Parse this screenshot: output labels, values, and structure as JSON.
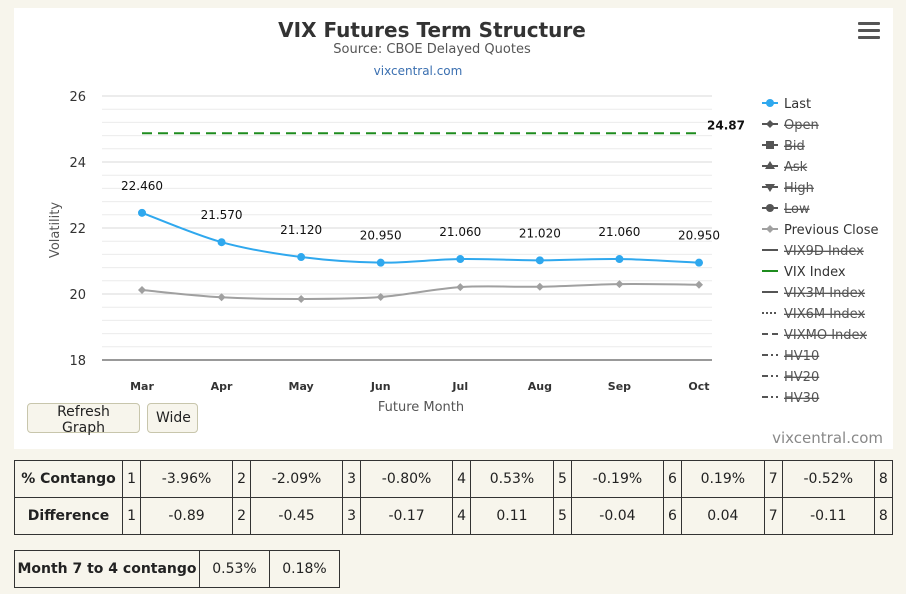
{
  "chart_data": {
    "type": "line",
    "title": "VIX Futures Term Structure",
    "subtitle": "Source: CBOE Delayed Quotes",
    "link": "vixcentral.com",
    "xlabel": "Future Month",
    "ylabel": "Volatility",
    "categories": [
      "Mar",
      "Apr",
      "May",
      "Jun",
      "Jul",
      "Aug",
      "Sep",
      "Oct"
    ],
    "ylim": [
      18,
      26
    ],
    "yticks": [
      18,
      20,
      22,
      24,
      26
    ],
    "grid": true,
    "legend_position": "right",
    "series": [
      {
        "name": "Last",
        "color": "#2fa8ee",
        "values": [
          22.46,
          21.57,
          21.12,
          20.95,
          21.06,
          21.02,
          21.06,
          20.95
        ],
        "labels": [
          "22.460",
          "21.570",
          "21.120",
          "20.950",
          "21.060",
          "21.020",
          "21.060",
          "20.950"
        ]
      },
      {
        "name": "Previous Close",
        "color": "#a0a0a0",
        "values": [
          20.12,
          19.9,
          19.85,
          19.91,
          20.21,
          20.22,
          20.3,
          20.28
        ]
      },
      {
        "name": "VIX Index",
        "color": "#1e8c1e",
        "values": [
          24.87,
          24.87,
          24.87,
          24.87,
          24.87,
          24.87,
          24.87,
          24.87
        ],
        "end_label": "24.87"
      }
    ],
    "legend": [
      {
        "name": "Last",
        "marker": "circle",
        "color": "#2fa8ee",
        "hidden": false
      },
      {
        "name": "Open",
        "marker": "diamond",
        "color": "#555555",
        "hidden": true
      },
      {
        "name": "Bid",
        "marker": "square",
        "color": "#555555",
        "hidden": true
      },
      {
        "name": "Ask",
        "marker": "triangle",
        "color": "#555555",
        "hidden": true
      },
      {
        "name": "High",
        "marker": "triangle-down",
        "color": "#555555",
        "hidden": true
      },
      {
        "name": "Low",
        "marker": "circle",
        "color": "#555555",
        "hidden": true
      },
      {
        "name": "Previous Close",
        "marker": "diamond",
        "color": "#a0a0a0",
        "hidden": false
      },
      {
        "name": "VIX9D Index",
        "marker": "line",
        "color": "#555555",
        "hidden": true
      },
      {
        "name": "VIX Index",
        "marker": "line",
        "color": "#1e8c1e",
        "hidden": false
      },
      {
        "name": "VIX3M Index",
        "marker": "line",
        "color": "#555555",
        "hidden": true
      },
      {
        "name": "VIX6M Index",
        "marker": "dotted",
        "color": "#555555",
        "hidden": true
      },
      {
        "name": "VIXMO Index",
        "marker": "dashed",
        "color": "#555555",
        "hidden": true
      },
      {
        "name": "HV10",
        "marker": "dashdot",
        "color": "#555555",
        "hidden": true
      },
      {
        "name": "HV20",
        "marker": "dashdot",
        "color": "#555555",
        "hidden": true
      },
      {
        "name": "HV30",
        "marker": "dashdot",
        "color": "#555555",
        "hidden": true
      }
    ]
  },
  "buttons": {
    "refresh": "Refresh Graph",
    "wide": "Wide"
  },
  "credit": "vixcentral.com",
  "menu_icon": "hamburger-menu-icon",
  "contango_table": {
    "rows": [
      {
        "label": "% Contango",
        "cells": [
          "1",
          "-3.96%",
          "2",
          "-2.09%",
          "3",
          "-0.80%",
          "4",
          "0.53%",
          "5",
          "-0.19%",
          "6",
          "0.19%",
          "7",
          "-0.52%",
          "8"
        ]
      },
      {
        "label": "Difference",
        "cells": [
          "1",
          "-0.89",
          "2",
          "-0.45",
          "3",
          "-0.17",
          "4",
          "0.11",
          "5",
          "-0.04",
          "6",
          "0.04",
          "7",
          "-0.11",
          "8"
        ]
      }
    ]
  },
  "month_table": {
    "label": "Month 7 to 4 contango",
    "values": [
      "0.53%",
      "0.18%"
    ]
  }
}
